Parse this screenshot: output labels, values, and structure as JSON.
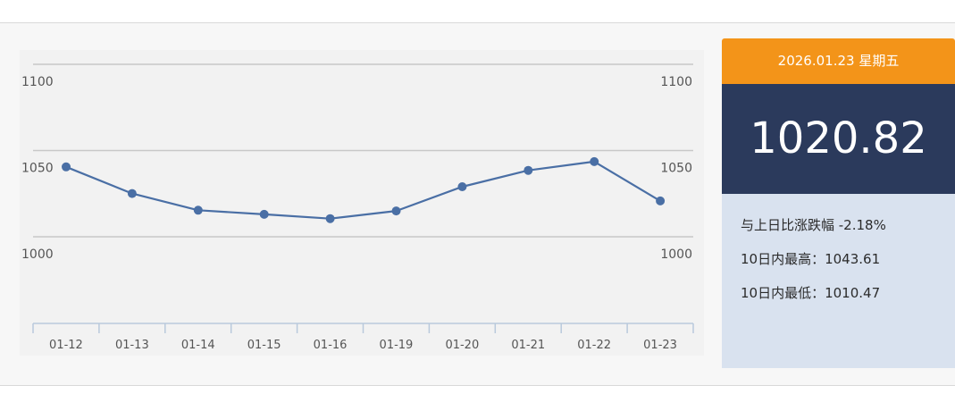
{
  "info": {
    "date": "2026.01.23 星期五",
    "value": "1020.82",
    "change": "与上日比涨跌幅 -2.18%",
    "high": "10日内最高：1043.61",
    "low": "10日内最低：1010.47"
  },
  "colors": {
    "line": "#4a6fa5",
    "date_bg": "#f39419",
    "value_bg": "#2b3a5c",
    "stats_bg": "#d9e2ef"
  },
  "chart_data": {
    "type": "line",
    "categories": [
      "01-12",
      "01-13",
      "01-14",
      "01-15",
      "01-16",
      "01-19",
      "01-20",
      "01-21",
      "01-22",
      "01-23"
    ],
    "values": [
      1040.5,
      1025.1,
      1015.4,
      1013.0,
      1010.5,
      1015.0,
      1029.0,
      1038.5,
      1043.6,
      1020.8
    ],
    "yticks": [
      1000,
      1050,
      1100
    ],
    "ylim": [
      1000,
      1100
    ],
    "grid": true,
    "title": "",
    "xlabel": "",
    "ylabel": ""
  }
}
